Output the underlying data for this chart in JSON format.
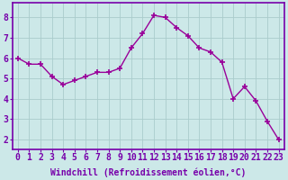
{
  "x": [
    0,
    1,
    2,
    3,
    4,
    5,
    6,
    7,
    8,
    9,
    10,
    11,
    12,
    13,
    14,
    15,
    16,
    17,
    18,
    19,
    20,
    21,
    22,
    23
  ],
  "y": [
    6.0,
    5.7,
    5.7,
    5.1,
    4.7,
    4.9,
    5.1,
    5.3,
    5.3,
    5.5,
    6.5,
    7.2,
    8.1,
    8.0,
    7.5,
    7.1,
    6.5,
    6.3,
    5.8,
    4.0,
    4.6,
    3.9,
    2.9,
    2.0
  ],
  "line_color": "#990099",
  "marker": "+",
  "marker_color": "#990099",
  "marker_size": 4,
  "xlabel": "Windchill (Refroidissement éolien,°C)",
  "xlabel_fontsize": 7,
  "ylabel_values": [
    2,
    3,
    4,
    5,
    6,
    7,
    8
  ],
  "xlim": [
    -0.5,
    23.5
  ],
  "ylim": [
    1.5,
    8.7
  ],
  "xtick_labels": [
    "0",
    "1",
    "2",
    "3",
    "4",
    "5",
    "6",
    "7",
    "8",
    "9",
    "10",
    "11",
    "12",
    "13",
    "14",
    "15",
    "16",
    "17",
    "18",
    "19",
    "20",
    "21",
    "22",
    "23"
  ],
  "bg_color": "#cce8e8",
  "plot_bg": "#cce8e8",
  "grid_color": "#aacccc",
  "spine_color": "#7700aa",
  "line_width": 1.0,
  "tick_fontsize": 7,
  "label_color": "#7700aa",
  "fig_bg": "#cce8e8"
}
